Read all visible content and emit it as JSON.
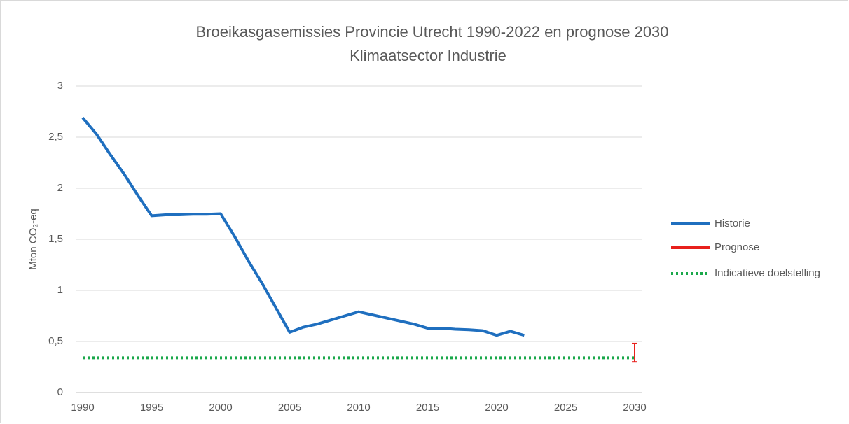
{
  "chart_data": {
    "type": "line",
    "title": "Broeikasgasemissies Provincie Utrecht 1990-2022 en prognose 2030",
    "subtitle": "Klimaatsector Industrie",
    "y_label": "Mton CO₂-eq",
    "xlim": [
      1990,
      2030
    ],
    "xticks": [
      1990,
      1995,
      2000,
      2005,
      2010,
      2015,
      2020,
      2025,
      2030
    ],
    "ylim": [
      0,
      3
    ],
    "yticks": [
      0,
      {
        "value": 0.5,
        "label": "0,5"
      },
      1,
      {
        "value": 1.5,
        "label": "1,5"
      },
      2,
      {
        "value": 2.5,
        "label": "2,5"
      },
      3
    ],
    "grid": true,
    "legend": "right",
    "series": [
      {
        "name": "Historie",
        "color": "#1f6fbf",
        "x": [
          1990,
          1991,
          1992,
          1993,
          1994,
          1995,
          1996,
          1997,
          1998,
          1999,
          2000,
          2001,
          2002,
          2003,
          2004,
          2005,
          2006,
          2007,
          2008,
          2009,
          2010,
          2011,
          2012,
          2013,
          2014,
          2015,
          2016,
          2017,
          2018,
          2019,
          2020,
          2021,
          2022
        ],
        "values": [
          2.69,
          2.53,
          2.33,
          2.14,
          1.93,
          1.73,
          1.74,
          1.74,
          1.745,
          1.745,
          1.75,
          1.53,
          1.29,
          1.07,
          0.83,
          0.59,
          0.64,
          0.67,
          0.71,
          0.75,
          0.79,
          0.76,
          0.73,
          0.7,
          0.67,
          0.63,
          0.63,
          0.62,
          0.615,
          0.605,
          0.56,
          0.6,
          0.56
        ]
      },
      {
        "name": "Prognose",
        "color": "#e8201c",
        "x": [
          2030
        ],
        "low": [
          0.3
        ],
        "high": [
          0.48
        ]
      },
      {
        "name": "Indicatieve doelstelling",
        "color": "#1aa84a",
        "style": "dotted",
        "x": [
          1990,
          2030
        ],
        "values": [
          0.34,
          0.34
        ]
      }
    ]
  }
}
